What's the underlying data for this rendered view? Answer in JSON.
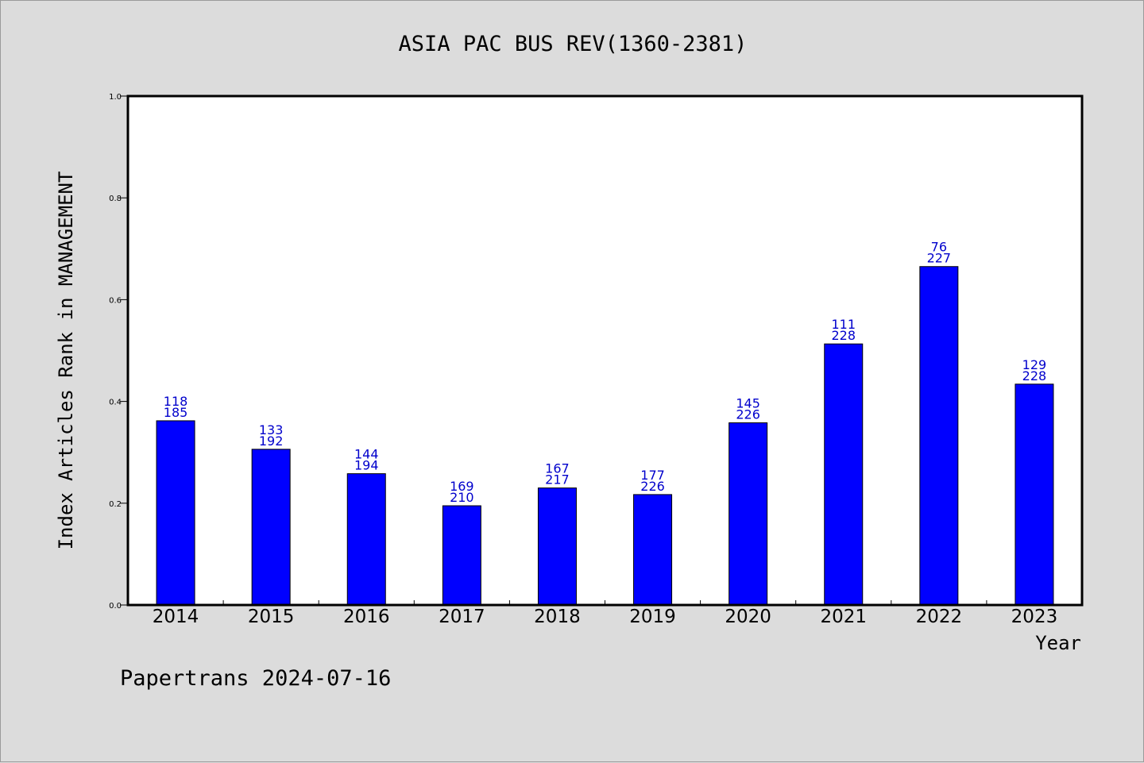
{
  "footer_text": "Papertrans 2024-07-16",
  "chart_data": {
    "type": "bar",
    "title": "ASIA PAC BUS REV(1360-2381)",
    "xlabel": "Year",
    "ylabel": "Index Articles Rank in MANAGEMENT",
    "ylim": [
      0,
      1.0
    ],
    "yticks": [
      "0.0",
      "0.2",
      "0.4",
      "0.6",
      "0.8",
      "1.0"
    ],
    "grid": false,
    "categories": [
      "2014",
      "2015",
      "2016",
      "2017",
      "2018",
      "2019",
      "2020",
      "2021",
      "2022",
      "2023"
    ],
    "values": [
      0.362,
      0.306,
      0.258,
      0.195,
      0.23,
      0.217,
      0.358,
      0.513,
      0.665,
      0.434
    ],
    "rank_labels": [
      "118",
      "133",
      "144",
      "169",
      "167",
      "177",
      "145",
      "111",
      "76",
      "129"
    ],
    "total_labels": [
      "185",
      "192",
      "194",
      "210",
      "217",
      "226",
      "226",
      "228",
      "227",
      "228"
    ],
    "bar_color": "#0000ff",
    "label_color": "#0000cc",
    "background_color": "#dcdcdc",
    "plot_background": "#ffffff"
  }
}
